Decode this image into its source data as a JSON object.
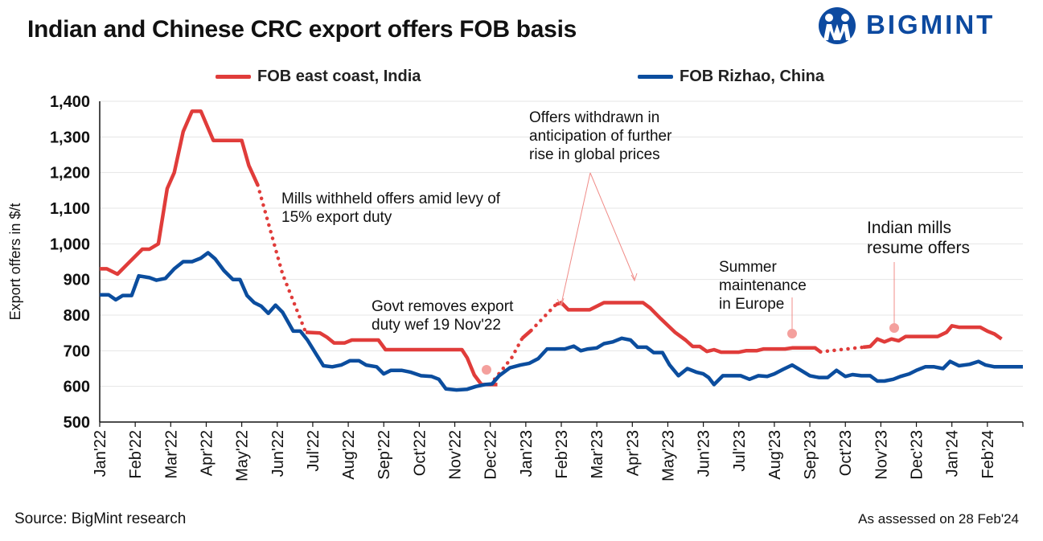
{
  "title": "Indian and Chinese CRC export offers FOB basis",
  "brand": {
    "name": "BIGMINT",
    "color": "#0d4aa0"
  },
  "footer": {
    "source": "Source: BigMint research",
    "assessed": "As assessed on 28 Feb'24"
  },
  "chart_data": {
    "type": "line",
    "title": "Indian and Chinese CRC export offers FOB basis",
    "xlabel": "",
    "ylabel": "Export offers in $/t",
    "ylim": [
      500,
      1400
    ],
    "yticks": [
      500,
      600,
      700,
      800,
      900,
      1000,
      1100,
      1200,
      1300,
      1400
    ],
    "ytick_labels": [
      "500",
      "600",
      "700",
      "800",
      "900",
      "1,000",
      "1,100",
      "1,200",
      "1,300",
      "1,400"
    ],
    "x_months": [
      "Jan'22",
      "Feb'22",
      "Mar'22",
      "Apr'22",
      "May'22",
      "Jun'22",
      "Jul'22",
      "Aug'22",
      "Sep'22",
      "Oct'22",
      "Nov'22",
      "Dec'22",
      "Jan'23",
      "Feb'23",
      "Mar'23",
      "Apr'23",
      "May'23",
      "Jun'23",
      "Jul'23",
      "Aug'23",
      "Sep'23",
      "Oct'23",
      "Nov'23",
      "Dec'23",
      "Jan'24",
      "Feb'24"
    ],
    "x_range_months": [
      0,
      26
    ],
    "grid": true,
    "legend_position": "top",
    "series": [
      {
        "name": "FOB east coast, India",
        "color": "#e03c3a",
        "segments": [
          {
            "style": "solid",
            "points": [
              [
                0,
                930
              ],
              [
                0.2,
                930
              ],
              [
                0.5,
                915
              ],
              [
                0.8,
                945
              ],
              [
                1.2,
                985
              ],
              [
                1.4,
                985
              ],
              [
                1.65,
                1000
              ],
              [
                1.9,
                1155
              ],
              [
                2.1,
                1200
              ],
              [
                2.35,
                1315
              ],
              [
                2.6,
                1372
              ],
              [
                2.85,
                1372
              ],
              [
                3.2,
                1290
              ],
              [
                3.6,
                1290
              ],
              [
                3.85,
                1290
              ],
              [
                4.0,
                1290
              ],
              [
                4.2,
                1220
              ],
              [
                4.45,
                1165
              ]
            ]
          },
          {
            "style": "dotted",
            "points": [
              [
                4.45,
                1165
              ],
              [
                5.15,
                915
              ],
              [
                5.8,
                752
              ]
            ]
          },
          {
            "style": "solid",
            "points": [
              [
                5.8,
                752
              ],
              [
                6.2,
                750
              ],
              [
                6.4,
                738
              ],
              [
                6.6,
                722
              ],
              [
                6.9,
                722
              ],
              [
                7.1,
                730
              ],
              [
                7.6,
                730
              ],
              [
                7.85,
                730
              ],
              [
                8.05,
                703
              ],
              [
                8.4,
                703
              ],
              [
                8.8,
                703
              ],
              [
                9.2,
                703
              ],
              [
                9.6,
                703
              ],
              [
                10.0,
                703
              ],
              [
                10.2,
                703
              ],
              [
                10.35,
                680
              ],
              [
                10.55,
                632
              ],
              [
                10.75,
                605
              ],
              [
                11.0,
                605
              ],
              [
                11.2,
                605
              ]
            ]
          },
          {
            "style": "dotted",
            "points": [
              [
                11.0,
                605
              ],
              [
                11.6,
                680
              ],
              [
                11.9,
                735
              ]
            ]
          },
          {
            "style": "solid",
            "points": [
              [
                11.9,
                735
              ],
              [
                12.15,
                757
              ]
            ]
          },
          {
            "style": "dotted",
            "points": [
              [
                12.15,
                757
              ],
              [
                12.85,
                830
              ]
            ]
          },
          {
            "style": "solid",
            "points": [
              [
                12.85,
                830
              ],
              [
                13.0,
                835
              ],
              [
                13.2,
                815
              ],
              [
                13.8,
                815
              ],
              [
                14.2,
                835
              ],
              [
                14.6,
                835
              ],
              [
                15.0,
                835
              ],
              [
                15.3,
                835
              ],
              [
                15.5,
                820
              ],
              [
                15.8,
                790
              ],
              [
                16.2,
                752
              ],
              [
                16.5,
                730
              ],
              [
                16.7,
                712
              ],
              [
                16.9,
                712
              ],
              [
                17.1,
                698
              ],
              [
                17.3,
                703
              ],
              [
                17.5,
                696
              ],
              [
                17.8,
                696
              ],
              [
                18.0,
                696
              ],
              [
                18.2,
                700
              ],
              [
                18.5,
                700
              ],
              [
                18.7,
                705
              ],
              [
                19.0,
                705
              ],
              [
                19.3,
                705
              ],
              [
                19.5,
                708
              ],
              [
                19.8,
                708
              ],
              [
                20.0,
                708
              ],
              [
                20.15,
                708
              ],
              [
                20.3,
                697
              ]
            ]
          },
          {
            "style": "dotted",
            "points": [
              [
                20.3,
                697
              ],
              [
                21.5,
                710
              ]
            ]
          },
          {
            "style": "solid",
            "points": [
              [
                21.5,
                710
              ],
              [
                21.7,
                712
              ],
              [
                21.9,
                733
              ],
              [
                22.1,
                725
              ],
              [
                22.3,
                733
              ],
              [
                22.5,
                728
              ],
              [
                22.7,
                740
              ],
              [
                23.0,
                740
              ],
              [
                23.3,
                740
              ],
              [
                23.6,
                740
              ],
              [
                23.85,
                752
              ],
              [
                24.0,
                770
              ],
              [
                24.2,
                766
              ],
              [
                24.6,
                766
              ],
              [
                24.8,
                766
              ],
              [
                25.0,
                755
              ],
              [
                25.2,
                747
              ],
              [
                25.4,
                733
              ]
            ]
          }
        ]
      },
      {
        "name": "FOB Rizhao, China",
        "color": "#0b4d9e",
        "segments": [
          {
            "style": "solid",
            "points": [
              [
                0,
                857
              ],
              [
                0.25,
                857
              ],
              [
                0.45,
                843
              ],
              [
                0.65,
                855
              ],
              [
                0.9,
                855
              ],
              [
                1.1,
                910
              ],
              [
                1.4,
                905
              ],
              [
                1.6,
                898
              ],
              [
                1.85,
                903
              ],
              [
                2.1,
                930
              ],
              [
                2.35,
                950
              ],
              [
                2.6,
                950
              ],
              [
                2.85,
                960
              ],
              [
                3.05,
                975
              ],
              [
                3.25,
                958
              ],
              [
                3.5,
                925
              ],
              [
                3.75,
                900
              ],
              [
                3.95,
                900
              ],
              [
                4.15,
                855
              ],
              [
                4.35,
                835
              ],
              [
                4.55,
                825
              ],
              [
                4.75,
                805
              ],
              [
                4.95,
                828
              ],
              [
                5.15,
                808
              ],
              [
                5.45,
                755
              ],
              [
                5.65,
                755
              ],
              [
                5.85,
                730
              ],
              [
                6.1,
                690
              ],
              [
                6.3,
                658
              ],
              [
                6.55,
                655
              ],
              [
                6.8,
                660
              ],
              [
                7.05,
                672
              ],
              [
                7.3,
                672
              ],
              [
                7.5,
                660
              ],
              [
                7.8,
                655
              ],
              [
                8.0,
                635
              ],
              [
                8.2,
                645
              ],
              [
                8.5,
                645
              ],
              [
                8.75,
                640
              ],
              [
                9.05,
                630
              ],
              [
                9.35,
                628
              ],
              [
                9.55,
                620
              ],
              [
                9.75,
                593
              ],
              [
                10.05,
                590
              ],
              [
                10.35,
                592
              ],
              [
                10.6,
                600
              ],
              [
                10.85,
                605
              ],
              [
                11.05,
                607
              ],
              [
                11.25,
                630
              ],
              [
                11.55,
                652
              ],
              [
                11.85,
                660
              ],
              [
                12.1,
                665
              ],
              [
                12.35,
                678
              ],
              [
                12.6,
                705
              ],
              [
                12.9,
                705
              ],
              [
                13.1,
                705
              ],
              [
                13.35,
                713
              ],
              [
                13.55,
                700
              ],
              [
                13.75,
                705
              ],
              [
                14.0,
                708
              ],
              [
                14.2,
                720
              ],
              [
                14.45,
                725
              ],
              [
                14.7,
                735
              ],
              [
                14.95,
                730
              ],
              [
                15.15,
                710
              ],
              [
                15.4,
                710
              ],
              [
                15.6,
                695
              ],
              [
                15.85,
                695
              ],
              [
                16.05,
                660
              ],
              [
                16.3,
                630
              ],
              [
                16.55,
                650
              ],
              [
                16.8,
                640
              ],
              [
                17.0,
                635
              ],
              [
                17.15,
                625
              ],
              [
                17.3,
                605
              ],
              [
                17.55,
                630
              ],
              [
                17.8,
                630
              ],
              [
                18.05,
                630
              ],
              [
                18.3,
                620
              ],
              [
                18.55,
                630
              ],
              [
                18.8,
                628
              ],
              [
                19.0,
                635
              ],
              [
                19.25,
                648
              ],
              [
                19.5,
                660
              ],
              [
                19.75,
                645
              ],
              [
                20.0,
                630
              ],
              [
                20.25,
                625
              ],
              [
                20.5,
                625
              ],
              [
                20.75,
                645
              ],
              [
                21.0,
                628
              ],
              [
                21.2,
                633
              ],
              [
                21.45,
                630
              ],
              [
                21.7,
                630
              ],
              [
                21.9,
                615
              ],
              [
                22.1,
                615
              ],
              [
                22.35,
                620
              ],
              [
                22.55,
                628
              ],
              [
                22.8,
                635
              ],
              [
                23.0,
                645
              ],
              [
                23.25,
                655
              ],
              [
                23.5,
                655
              ],
              [
                23.75,
                650
              ],
              [
                23.95,
                670
              ],
              [
                24.2,
                658
              ],
              [
                24.5,
                662
              ],
              [
                24.75,
                670
              ],
              [
                24.95,
                660
              ],
              [
                25.2,
                655
              ],
              [
                25.5,
                655
              ],
              [
                25.75,
                655
              ],
              [
                26.0,
                655
              ],
              [
                26.25,
                655
              ],
              [
                26.5,
                650
              ],
              [
                26.75,
                650
              ],
              [
                27.0,
                650
              ],
              [
                27.2,
                650
              ]
            ]
          }
        ]
      }
    ],
    "annotations": [
      {
        "lines": [
          "Mills withheld offers amid levy of",
          "15% export duty"
        ]
      },
      {
        "lines": [
          "Govt removes export",
          "duty wef 19 Nov'22"
        ]
      },
      {
        "lines": [
          "Offers withdrawn in",
          "anticipation of further",
          "rise in global prices"
        ]
      },
      {
        "lines": [
          "Summer",
          "maintenance",
          "in Europe"
        ]
      },
      {
        "lines": [
          "Indian mills",
          "resume offers"
        ]
      }
    ]
  }
}
